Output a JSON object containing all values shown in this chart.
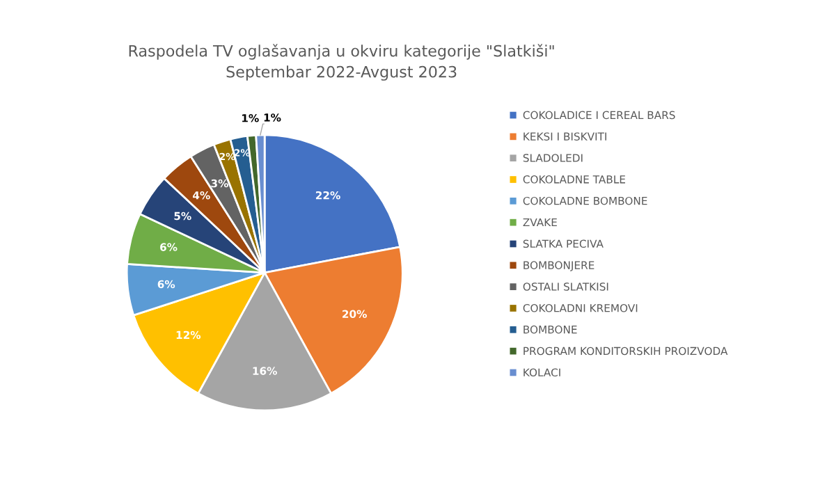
{
  "chart_data": {
    "type": "pie",
    "title": "Raspodela TV oglašavanja u okviru kategorije \"Slatkiši\"",
    "subtitle": "Septembar 2022-Avgust 2023",
    "categories": [
      "COKOLADICE I CEREAL BARS",
      "KEKSI I BISKVITI",
      "SLADOLEDI",
      "COKOLADNE TABLE",
      "COKOLADNE BOMBONE",
      "ZVAKE",
      "SLATKA PECIVA",
      "BOMBONJERE",
      "OSTALI SLATKISI",
      "COKOLADNI KREMOVI",
      "BOMBONE",
      "PROGRAM KONDITORSKIH PROIZVODA",
      "KOLACI"
    ],
    "values": [
      22,
      20,
      16,
      12,
      6,
      6,
      5,
      4,
      3,
      2,
      2,
      1,
      1
    ],
    "value_labels": [
      "22%",
      "20%",
      "16%",
      "12%",
      "6%",
      "6%",
      "5%",
      "4%",
      "3%",
      "2%",
      "2%",
      "1%",
      "1%"
    ],
    "colors": [
      "#4472c4",
      "#ed7d31",
      "#a5a5a5",
      "#ffc000",
      "#5b9bd5",
      "#70ad47",
      "#264478",
      "#9e480e",
      "#636363",
      "#997300",
      "#255e91",
      "#43682b",
      "#698ed0"
    ],
    "legend": "right"
  }
}
